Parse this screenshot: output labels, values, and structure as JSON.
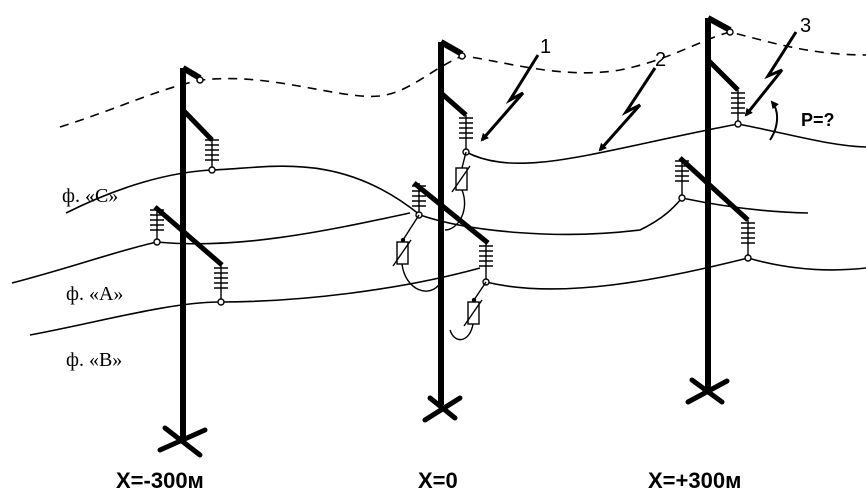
{
  "diagram": {
    "phase_labels": {
      "c": "ф. «C»",
      "a": "ф. «A»",
      "b": "ф. «B»"
    },
    "position_labels": {
      "left": "X=-300м",
      "center": "X=0",
      "right": "X=+300м"
    },
    "strike_labels": {
      "one": "1",
      "two": "2",
      "three": "3"
    },
    "power_label": "P=?"
  }
}
